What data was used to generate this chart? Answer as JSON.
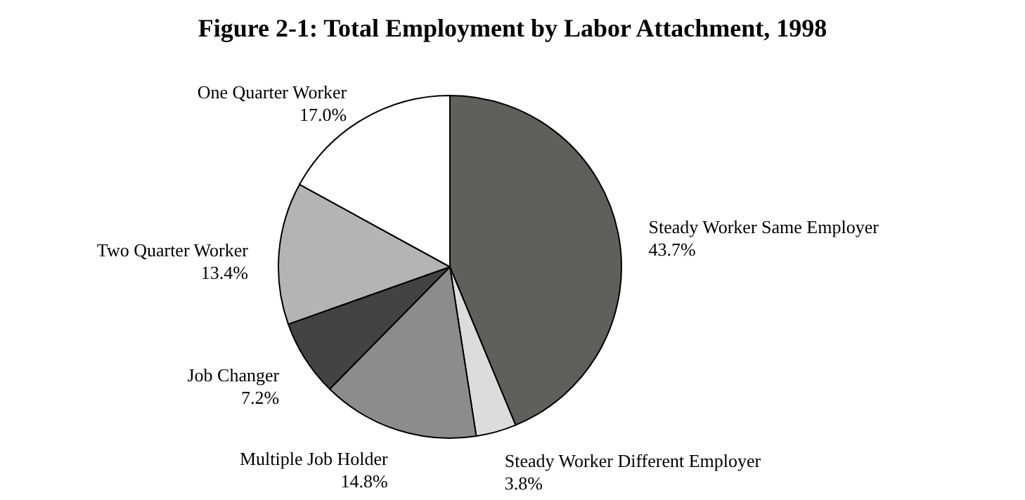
{
  "chart_data": {
    "type": "pie",
    "title": "Figure 2-1:  Total Employment by Labor Attachment, 1998",
    "categories": [
      "Steady Worker Same Employer",
      "Steady Worker Different Employer",
      "Multiple Job Holder",
      "Job Changer",
      "Two Quarter Worker",
      "One Quarter Worker"
    ],
    "values": [
      43.7,
      3.8,
      14.8,
      7.2,
      13.4,
      17.0
    ],
    "colors": [
      "#5f605b",
      "#dcdcdc",
      "#8c8c8c",
      "#434343",
      "#b4b4b4",
      "#ffffff"
    ],
    "value_labels": [
      "43.7%",
      "3.8%",
      "14.8%",
      "7.2%",
      "13.4%",
      "17.0%"
    ]
  }
}
